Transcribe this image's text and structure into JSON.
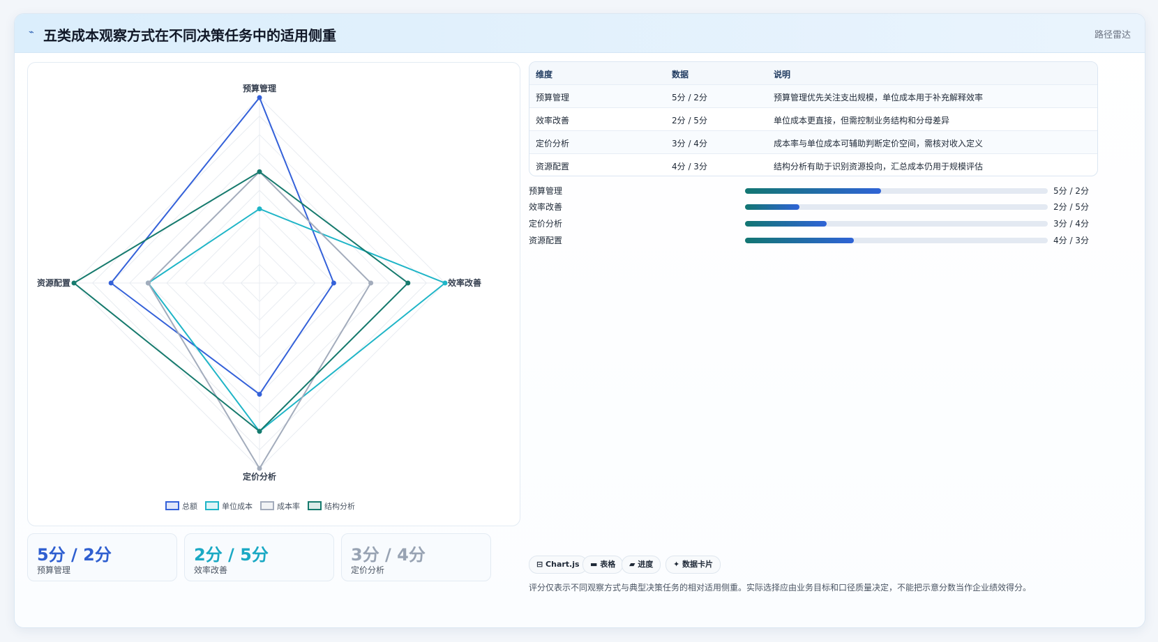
{
  "header": {
    "icon": "radar-icon",
    "title": "五类成本观察方式在不同决策任务中的适用侧重",
    "tag": "路径雷达"
  },
  "colors": {
    "total": "#3461d9",
    "unit": "#1fb5c7",
    "rate": "#a3acbc",
    "structure": "#167a6d"
  },
  "chart_data": {
    "type": "radar",
    "axes": [
      "预算管理",
      "效率改善",
      "定价分析",
      "资源配置"
    ],
    "range": [
      0,
      5
    ],
    "grid": true,
    "legend_position": "bottom",
    "series": [
      {
        "name": "总额",
        "color": "#3461d9",
        "values": [
          5,
          2,
          3,
          4
        ]
      },
      {
        "name": "单位成本",
        "color": "#1fb5c7",
        "values": [
          2,
          5,
          4,
          3
        ]
      },
      {
        "name": "成本率",
        "color": "#a3acbc",
        "values": [
          3,
          3,
          5,
          3
        ]
      },
      {
        "name": "结构分析",
        "color": "#167a6d",
        "values": [
          3,
          4,
          4,
          5
        ]
      }
    ]
  },
  "kpis": [
    {
      "value": "5分 / 2分",
      "label": "预算管理",
      "color": "#2f5fd0"
    },
    {
      "value": "2分 / 5分",
      "label": "效率改善",
      "color": "#1aa9c4"
    },
    {
      "value": "3分 / 4分",
      "label": "定价分析",
      "color": "#98a3b3"
    }
  ],
  "table": {
    "headers": [
      "维度",
      "数据",
      "说明"
    ],
    "rows": [
      [
        "预算管理",
        "5分 / 2分",
        "预算管理优先关注支出规模，单位成本用于补充解释效率"
      ],
      [
        "效率改善",
        "2分 / 5分",
        "单位成本更直接，但需控制业务结构和分母差异"
      ],
      [
        "定价分析",
        "3分 / 4分",
        "成本率与单位成本可辅助判断定价空间，需核对收入定义"
      ],
      [
        "资源配置",
        "4分 / 3分",
        "结构分析有助于识别资源投向，汇总成本仍用于规模评估"
      ]
    ]
  },
  "progress": [
    {
      "label": "预算管理",
      "value": "5分 / 2分",
      "fraction": 0.45
    },
    {
      "label": "效率改善",
      "value": "2分 / 5分",
      "fraction": 0.18
    },
    {
      "label": "定价分析",
      "value": "3分 / 4分",
      "fraction": 0.27
    },
    {
      "label": "资源配置",
      "value": "4分 / 3分",
      "fraction": 0.36
    }
  ],
  "chips": [
    "⊟ Chart.js",
    "▬ 表格",
    "▰ 进度",
    "✦ 数据卡片"
  ],
  "note": "评分仅表示不同观察方式与典型决策任务的相对适用侧重。实际选择应由业务目标和口径质量决定，不能把示意分数当作企业绩效得分。"
}
